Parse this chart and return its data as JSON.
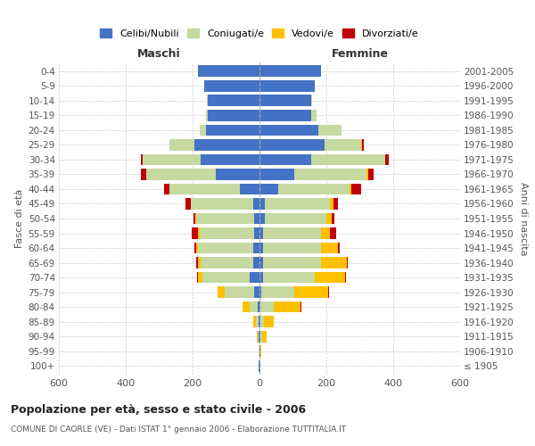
{
  "age_groups": [
    "100+",
    "95-99",
    "90-94",
    "85-89",
    "80-84",
    "75-79",
    "70-74",
    "65-69",
    "60-64",
    "55-59",
    "50-54",
    "45-49",
    "40-44",
    "35-39",
    "30-34",
    "25-29",
    "20-24",
    "15-19",
    "10-14",
    "5-9",
    "0-4"
  ],
  "birth_years": [
    "≤ 1905",
    "1906-1910",
    "1911-1915",
    "1916-1920",
    "1921-1925",
    "1926-1930",
    "1931-1935",
    "1936-1940",
    "1941-1945",
    "1946-1950",
    "1951-1955",
    "1956-1960",
    "1961-1965",
    "1966-1970",
    "1971-1975",
    "1976-1980",
    "1981-1985",
    "1986-1990",
    "1991-1995",
    "1996-2000",
    "2001-2005"
  ],
  "maschi": {
    "celibi": [
      2,
      1,
      2,
      4,
      5,
      15,
      30,
      20,
      20,
      15,
      15,
      20,
      60,
      130,
      175,
      195,
      160,
      155,
      155,
      165,
      185
    ],
    "coniugati": [
      0,
      1,
      3,
      8,
      25,
      90,
      140,
      155,
      165,
      165,
      175,
      185,
      210,
      210,
      175,
      75,
      20,
      5,
      2,
      1,
      0
    ],
    "vedovi": [
      0,
      0,
      2,
      8,
      20,
      20,
      15,
      10,
      5,
      3,
      2,
      1,
      0,
      0,
      0,
      0,
      0,
      0,
      0,
      0,
      0
    ],
    "divorziati": [
      0,
      0,
      0,
      0,
      0,
      0,
      2,
      5,
      5,
      20,
      5,
      15,
      15,
      15,
      5,
      0,
      0,
      0,
      0,
      0,
      0
    ]
  },
  "femmine": {
    "nubili": [
      2,
      2,
      2,
      3,
      3,
      5,
      10,
      10,
      10,
      10,
      15,
      15,
      55,
      105,
      155,
      195,
      175,
      155,
      155,
      165,
      185
    ],
    "coniugate": [
      0,
      1,
      5,
      10,
      40,
      100,
      155,
      175,
      175,
      175,
      185,
      195,
      215,
      215,
      220,
      110,
      70,
      15,
      3,
      1,
      0
    ],
    "vedove": [
      0,
      2,
      15,
      30,
      80,
      100,
      90,
      75,
      50,
      25,
      15,
      10,
      5,
      5,
      2,
      1,
      0,
      0,
      0,
      0,
      0
    ],
    "divorziate": [
      0,
      0,
      0,
      0,
      2,
      2,
      3,
      5,
      5,
      20,
      10,
      15,
      30,
      15,
      10,
      5,
      1,
      0,
      0,
      0,
      0
    ]
  },
  "colors": {
    "celibi": "#4472c4",
    "coniugati": "#c5d9a0",
    "vedovi": "#ffc000",
    "divorziati": "#c0000b"
  },
  "xlim": 600,
  "title": "Popolazione per età, sesso e stato civile - 2006",
  "subtitle": "COMUNE DI CAORLE (VE) - Dati ISTAT 1° gennaio 2006 - Elaborazione TUTTITALIA.IT",
  "ylabel_left": "Fasce di età",
  "ylabel_right": "Anni di nascita",
  "xlabel_maschi": "Maschi",
  "xlabel_femmine": "Femmine",
  "bg_color": "#ffffff",
  "grid_color": "#cccccc"
}
